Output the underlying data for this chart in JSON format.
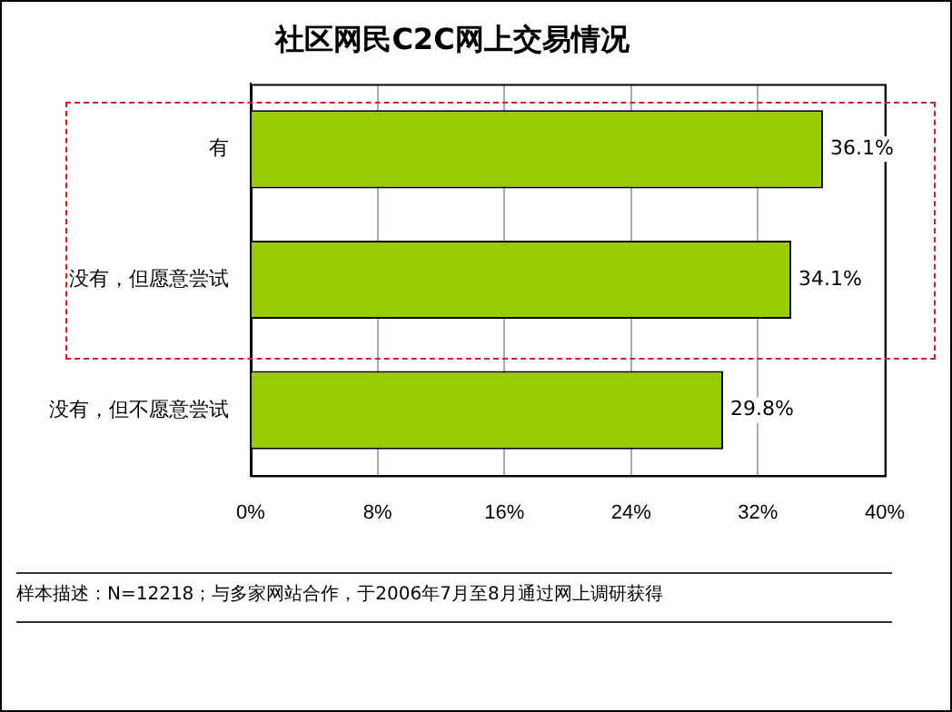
{
  "chart_data": {
    "type": "bar",
    "orientation": "horizontal",
    "title": "社区网民C2C网上交易情况",
    "categories": [
      "有",
      "没有，但愿意尝试",
      "没有，但不愿意尝试"
    ],
    "values": [
      36.1,
      34.1,
      29.8
    ],
    "color": "#99cc00",
    "value_labels": [
      "36.1%",
      "34.1%",
      "29.8%"
    ],
    "xlim": [
      0,
      40
    ],
    "xticks": [
      {
        "value": 0,
        "label": "0%"
      },
      {
        "value": 8,
        "label": "8%"
      },
      {
        "value": 16,
        "label": "16%"
      },
      {
        "value": 24,
        "label": "24%"
      },
      {
        "value": 32,
        "label": "32%"
      },
      {
        "value": 40,
        "label": "40%"
      }
    ],
    "grid": "x",
    "legend": false,
    "annotations": [
      "样本描述：N=12218；与多家网站合作，于2006年7月至8月通过网上调研获得"
    ]
  }
}
